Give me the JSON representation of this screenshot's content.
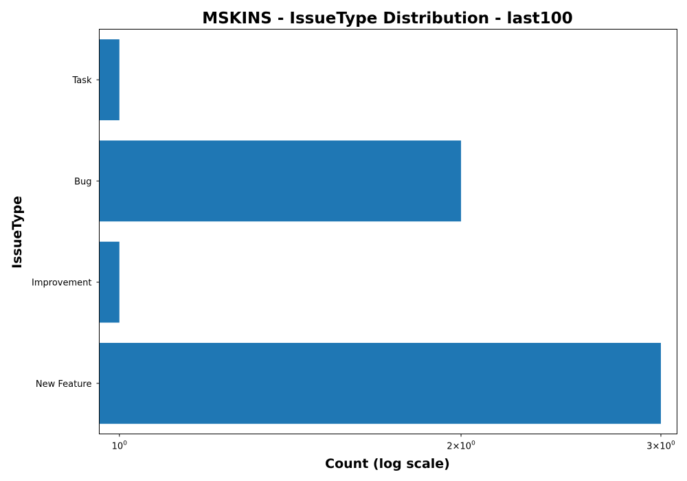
{
  "chart_data": {
    "type": "bar",
    "orientation": "horizontal",
    "title": "MSKINS - IssueType Distribution - last100",
    "xlabel": "Count (log scale)",
    "ylabel": "IssueType",
    "x_scale": "log",
    "xlim": [
      0.96,
      3.1
    ],
    "categories": [
      "New Feature",
      "Improvement",
      "Bug",
      "Task"
    ],
    "values": [
      3,
      1,
      2,
      1
    ],
    "xticks": [
      {
        "value": 1,
        "base": "10",
        "exp": "0"
      },
      {
        "value": 2,
        "base": "2×10",
        "exp": "0"
      },
      {
        "value": 3,
        "base": "3×10",
        "exp": "0"
      }
    ],
    "bar_color": "#1f77b4",
    "grid": false,
    "legend": "none"
  }
}
